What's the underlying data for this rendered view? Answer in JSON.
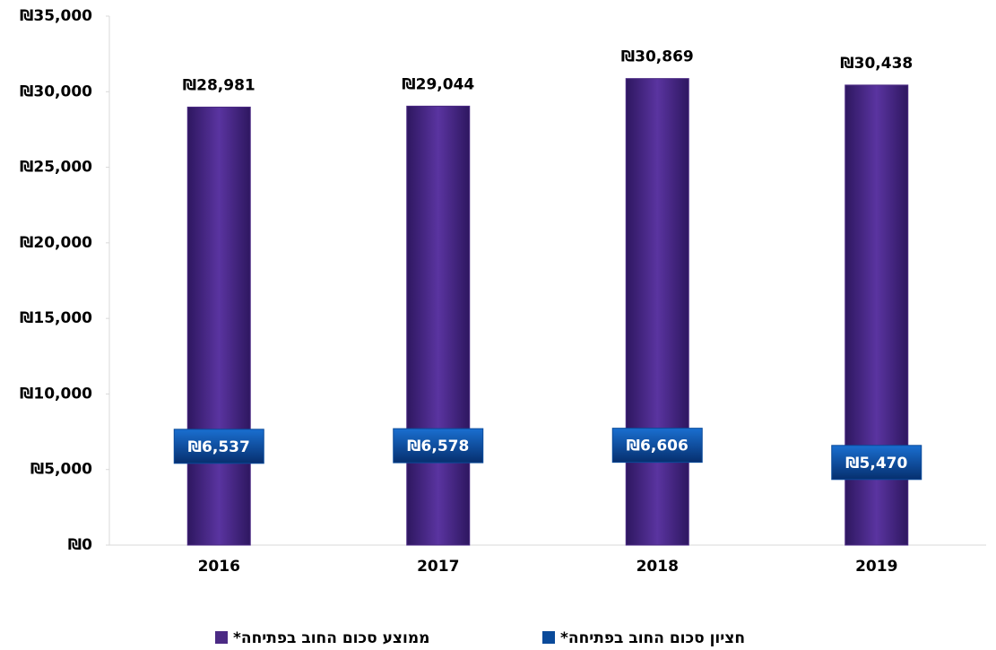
{
  "chart_data": {
    "type": "bar",
    "categories": [
      "2016",
      "2017",
      "2018",
      "2019"
    ],
    "series": [
      {
        "name": "ממוצע סכום החוב בפתיחה*",
        "color": "#4b2a84",
        "values": [
          28981,
          29044,
          30869,
          30438
        ],
        "value_labels": [
          "₪28,981",
          "₪29,044",
          "₪30,869",
          "₪30,438"
        ]
      },
      {
        "name": "חציון סכום החוב בפתיחה*",
        "color": "#0a4a9a",
        "values": [
          6537,
          6578,
          6606,
          5470
        ],
        "value_labels": [
          "₪6,537",
          "₪6,578",
          "₪6,606",
          "₪5,470"
        ]
      }
    ],
    "ylim": [
      0,
      35000
    ],
    "yticks": [
      {
        "value": 0,
        "label": "₪0"
      },
      {
        "value": 5000,
        "label": "₪5,000"
      },
      {
        "value": 10000,
        "label": "₪10,000"
      },
      {
        "value": 15000,
        "label": "₪15,000"
      },
      {
        "value": 20000,
        "label": "₪20,000"
      },
      {
        "value": 25000,
        "label": "₪25,000"
      },
      {
        "value": 30000,
        "label": "₪30,000"
      },
      {
        "value": 35000,
        "label": "₪35,000"
      }
    ],
    "grid": false
  }
}
